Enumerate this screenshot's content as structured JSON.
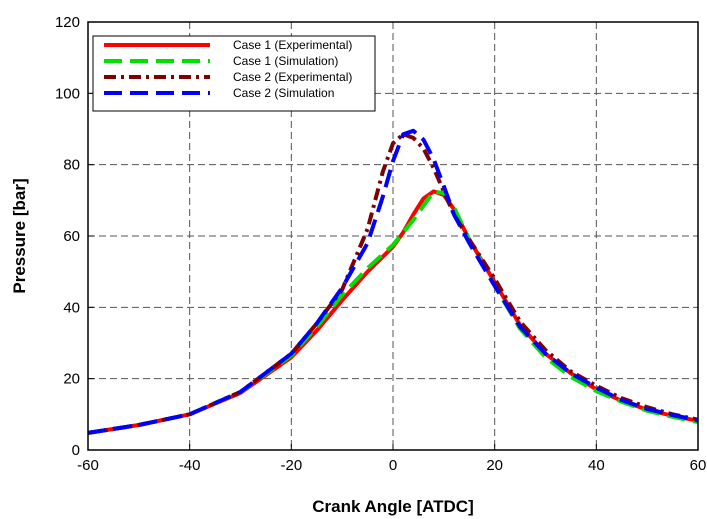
{
  "chart_data": {
    "type": "line",
    "title": "",
    "xlabel": "Crank Angle [ATDC]",
    "ylabel": "Pressure [bar]",
    "xlim": [
      -60,
      60
    ],
    "ylim": [
      0,
      120
    ],
    "xticks": [
      -60,
      -40,
      -20,
      0,
      20,
      40,
      60
    ],
    "yticks": [
      0,
      20,
      40,
      60,
      80,
      100,
      120
    ],
    "xtick_labels": [
      "-60",
      "-40",
      "-20",
      "0",
      "20",
      "40",
      "60"
    ],
    "ytick_labels": [
      "0",
      "20",
      "40",
      "60",
      "80",
      "100",
      "120"
    ],
    "grid": true,
    "legend_position": "top-left",
    "series": [
      {
        "name": "Case 1 (Experimental)",
        "color": "#ff0000",
        "style": "solid",
        "x": [
          -60,
          -50,
          -40,
          -30,
          -20,
          -15,
          -10,
          -5,
          0,
          2,
          4,
          6,
          8,
          10,
          12,
          15,
          20,
          25,
          30,
          35,
          40,
          45,
          50,
          55,
          60
        ],
        "y": [
          4.8,
          7.0,
          10.0,
          16.0,
          26.0,
          33.5,
          42.0,
          50.0,
          57.0,
          61.0,
          66.0,
          70.5,
          72.5,
          71.5,
          67.5,
          59.0,
          47.0,
          35.0,
          27.0,
          21.5,
          17.0,
          13.8,
          11.3,
          9.6,
          8.2
        ]
      },
      {
        "name": "Case 1 (Simulation)",
        "color": "#00e000",
        "style": "dash",
        "x": [
          -60,
          -50,
          -40,
          -30,
          -20,
          -15,
          -10,
          -5,
          0,
          2,
          4,
          6,
          8,
          10,
          12,
          15,
          20,
          25,
          30,
          35,
          40,
          45,
          50,
          55,
          60
        ],
        "y": [
          4.8,
          7.0,
          10.0,
          16.2,
          26.5,
          34.5,
          43.5,
          51.0,
          57.5,
          61.0,
          64.5,
          68.5,
          72.5,
          72.0,
          68.0,
          59.0,
          46.0,
          34.0,
          26.0,
          20.5,
          16.5,
          13.5,
          11.0,
          9.3,
          7.8
        ]
      },
      {
        "name": "Case 2 (Experimental)",
        "color": "#800000",
        "style": "dashdot",
        "x": [
          -60,
          -50,
          -40,
          -30,
          -20,
          -15,
          -10,
          -5,
          -2,
          0,
          2,
          4,
          6,
          8,
          10,
          12,
          15,
          20,
          25,
          30,
          35,
          40,
          45,
          50,
          55,
          60
        ],
        "y": [
          4.8,
          7.0,
          10.0,
          16.3,
          27.0,
          35.5,
          45.0,
          62.0,
          78.0,
          86.0,
          88.5,
          87.5,
          84.5,
          79.0,
          72.5,
          66.0,
          59.0,
          48.0,
          36.0,
          28.0,
          22.0,
          18.0,
          14.5,
          12.0,
          10.0,
          8.5
        ]
      },
      {
        "name": "Case 2 (Simulation",
        "color": "#0000ff",
        "style": "dash",
        "x": [
          -60,
          -50,
          -40,
          -30,
          -20,
          -15,
          -10,
          -5,
          -2,
          0,
          2,
          4,
          6,
          8,
          10,
          12,
          15,
          20,
          25,
          30,
          35,
          40,
          45,
          50,
          55,
          60
        ],
        "y": [
          4.8,
          7.0,
          10.0,
          16.3,
          27.0,
          35.5,
          45.5,
          58.0,
          71.0,
          81.0,
          88.5,
          89.5,
          87.0,
          81.5,
          74.0,
          66.0,
          58.0,
          46.0,
          34.5,
          27.0,
          21.5,
          17.5,
          14.0,
          11.5,
          9.8,
          8.3
        ]
      }
    ]
  }
}
